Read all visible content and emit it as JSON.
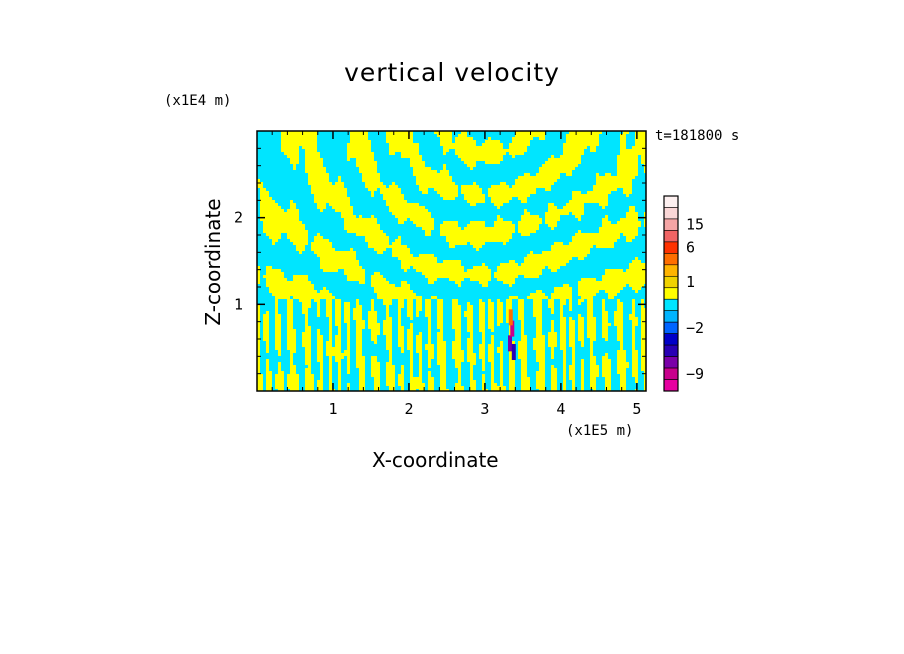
{
  "chart_data": {
    "type": "heatmap",
    "title": "vertical velocity",
    "xlabel": "X-coordinate",
    "ylabel": "Z-coordinate",
    "x_unit": "(x1E5 m)",
    "z_unit": "(x1E4 m)",
    "timestamp": "t=181800 s",
    "xlim": [
      0,
      5.12
    ],
    "ylim": [
      0,
      3.0
    ],
    "x_ticks": [
      "1",
      "2",
      "3",
      "4",
      "5"
    ],
    "y_ticks": [
      "1",
      "2"
    ],
    "x_tick_values": [
      1,
      2,
      3,
      4,
      5
    ],
    "y_tick_values": [
      1,
      2
    ],
    "field_colors": {
      "positive": "#ffff00",
      "negative": "#00e5ff"
    },
    "colorbar": {
      "levels": [
        {
          "value": -12,
          "color": "#e600a0"
        },
        {
          "value": -9,
          "color": "#c8008c"
        },
        {
          "value": -6,
          "color": "#7a00a8"
        },
        {
          "value": -4,
          "color": "#2800b4"
        },
        {
          "value": -3,
          "color": "#0000c8"
        },
        {
          "value": -2,
          "color": "#0064ff"
        },
        {
          "value": -1,
          "color": "#00b4ff"
        },
        {
          "value": 0,
          "color": "#00e5ff"
        },
        {
          "value": 0.5,
          "color": "#ffff00"
        },
        {
          "value": 1,
          "color": "#f0d200"
        },
        {
          "value": 2,
          "color": "#ffb400"
        },
        {
          "value": 4,
          "color": "#ff6e00"
        },
        {
          "value": 6,
          "color": "#ff3200"
        },
        {
          "value": 10,
          "color": "#f06464"
        },
        {
          "value": 15,
          "color": "#f5a5a5"
        },
        {
          "value": 20,
          "color": "#fad7d7"
        },
        {
          "value": 30,
          "color": "#fdf0f0"
        }
      ],
      "tick_labels": [
        "15",
        "6",
        "1",
        "−2",
        "−9"
      ]
    }
  }
}
